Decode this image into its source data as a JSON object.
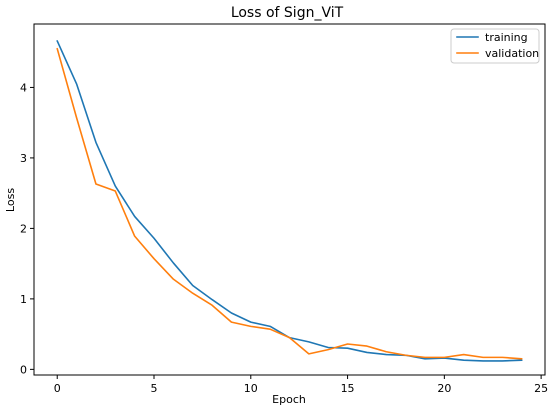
{
  "chart_data": {
    "type": "line",
    "title": "Loss of Sign_ViT",
    "xlabel": "Epoch",
    "ylabel": "Loss",
    "xlim": [
      -1.2,
      25.2
    ],
    "ylim": [
      -0.08,
      4.9
    ],
    "xticks": [
      0,
      5,
      10,
      15,
      20,
      25
    ],
    "yticks": [
      0,
      1,
      2,
      3,
      4
    ],
    "grid": false,
    "legend_position": "top-right",
    "x": [
      0,
      1,
      2,
      3,
      4,
      5,
      6,
      7,
      8,
      9,
      10,
      11,
      12,
      13,
      14,
      15,
      16,
      17,
      18,
      19,
      20,
      21,
      22,
      23,
      24
    ],
    "series": [
      {
        "name": "training",
        "color": "#1f77b4",
        "values": [
          4.66,
          4.05,
          3.22,
          2.6,
          2.17,
          1.86,
          1.51,
          1.19,
          0.99,
          0.8,
          0.67,
          0.61,
          0.45,
          0.39,
          0.31,
          0.3,
          0.24,
          0.21,
          0.2,
          0.15,
          0.16,
          0.13,
          0.12,
          0.12,
          0.13
        ]
      },
      {
        "name": "validation",
        "color": "#ff7f0e",
        "values": [
          4.55,
          3.57,
          2.63,
          2.53,
          1.89,
          1.57,
          1.28,
          1.08,
          0.91,
          0.67,
          0.61,
          0.57,
          0.45,
          0.22,
          0.28,
          0.36,
          0.33,
          0.25,
          0.2,
          0.17,
          0.17,
          0.21,
          0.17,
          0.17,
          0.15
        ]
      }
    ]
  }
}
